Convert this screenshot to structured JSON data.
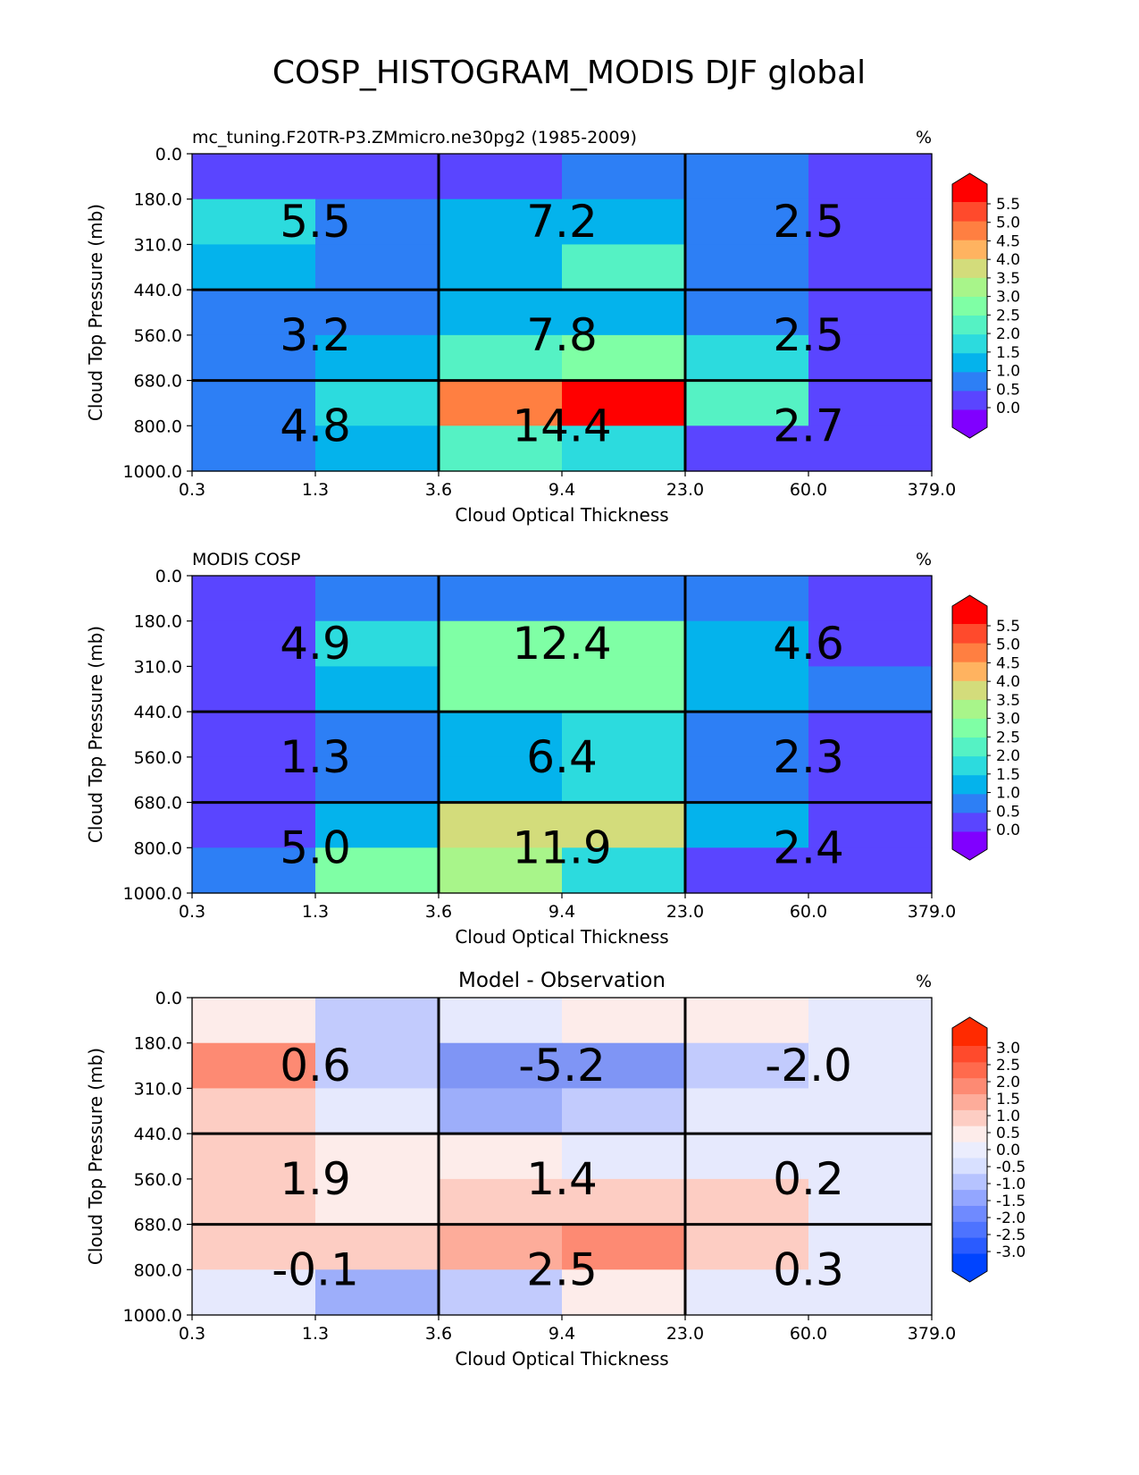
{
  "figure_title": "COSP_HISTOGRAM_MODIS DJF global",
  "chart_data": [
    {
      "type": "heatmap",
      "title_left": "mc_tuning.F20TR-P3.ZMmicro.ne30pg2 (1985-2009)",
      "title_center": "",
      "units": "%",
      "xlabel": "Cloud Optical Thickness",
      "ylabel": "Cloud Top Pressure (mb)",
      "x_ticks": [
        "0.3",
        "1.3",
        "3.6",
        "9.4",
        "23.0",
        "60.0",
        "379.0"
      ],
      "y_ticks": [
        "0.0",
        "180.0",
        "310.0",
        "440.0",
        "560.0",
        "680.0",
        "800.0",
        "1000.0"
      ],
      "colorbar": {
        "labels": [
          "5.5",
          "5.0",
          "4.5",
          "4.0",
          "3.5",
          "3.0",
          "2.5",
          "2.0",
          "1.5",
          "1.0",
          "0.5",
          "0.0"
        ],
        "extend": "both",
        "top_color": "#ff0000",
        "bottom_color": "#8000ff",
        "colors": [
          "#5a45ff",
          "#2d7ff5",
          "#04b3ec",
          "#2cdbde",
          "#55f2c4",
          "#7fffa5",
          "#a8f58a",
          "#d3dc7b",
          "#ffb360",
          "#ff7f41",
          "#ff4a2c"
        ]
      },
      "cell_colors": [
        [
          "#5a45ff",
          "#5a45ff",
          "#5a45ff",
          "#2d7ff5",
          "#2d7ff5",
          "#5a45ff"
        ],
        [
          "#2cdbde",
          "#2d7ff5",
          "#04b3ec",
          "#04b3ec",
          "#2d7ff5",
          "#5a45ff"
        ],
        [
          "#04b3ec",
          "#2d7ff5",
          "#04b3ec",
          "#55f2c4",
          "#2d7ff5",
          "#5a45ff"
        ],
        [
          "#2d7ff5",
          "#2d7ff5",
          "#04b3ec",
          "#04b3ec",
          "#2d7ff5",
          "#5a45ff"
        ],
        [
          "#2d7ff5",
          "#04b3ec",
          "#55f2c4",
          "#7fffa5",
          "#2cdbde",
          "#5a45ff"
        ],
        [
          "#2d7ff5",
          "#2cdbde",
          "#ff7f41",
          "#ff0000",
          "#55f2c4",
          "#5a45ff"
        ],
        [
          "#2d7ff5",
          "#04b3ec",
          "#55f2c4",
          "#2cdbde",
          "#5a45ff",
          "#5a45ff"
        ]
      ],
      "block_values": [
        [
          "5.5",
          "7.2",
          "2.5"
        ],
        [
          "3.2",
          "7.8",
          "2.5"
        ],
        [
          "4.8",
          "14.4",
          "2.7"
        ]
      ]
    },
    {
      "type": "heatmap",
      "title_left": "MODIS COSP",
      "title_center": "",
      "units": "%",
      "xlabel": "Cloud Optical Thickness",
      "ylabel": "Cloud Top Pressure (mb)",
      "x_ticks": [
        "0.3",
        "1.3",
        "3.6",
        "9.4",
        "23.0",
        "60.0",
        "379.0"
      ],
      "y_ticks": [
        "0.0",
        "180.0",
        "310.0",
        "440.0",
        "560.0",
        "680.0",
        "800.0",
        "1000.0"
      ],
      "colorbar": {
        "labels": [
          "5.5",
          "5.0",
          "4.5",
          "4.0",
          "3.5",
          "3.0",
          "2.5",
          "2.0",
          "1.5",
          "1.0",
          "0.5",
          "0.0"
        ],
        "extend": "both",
        "top_color": "#ff0000",
        "bottom_color": "#8000ff",
        "colors": [
          "#5a45ff",
          "#2d7ff5",
          "#04b3ec",
          "#2cdbde",
          "#55f2c4",
          "#7fffa5",
          "#a8f58a",
          "#d3dc7b",
          "#ffb360",
          "#ff7f41",
          "#ff4a2c"
        ]
      },
      "cell_colors": [
        [
          "#5a45ff",
          "#2d7ff5",
          "#2d7ff5",
          "#2d7ff5",
          "#2d7ff5",
          "#5a45ff"
        ],
        [
          "#5a45ff",
          "#2cdbde",
          "#7fffa5",
          "#7fffa5",
          "#04b3ec",
          "#5a45ff"
        ],
        [
          "#5a45ff",
          "#04b3ec",
          "#7fffa5",
          "#7fffa5",
          "#04b3ec",
          "#2d7ff5"
        ],
        [
          "#5a45ff",
          "#2d7ff5",
          "#04b3ec",
          "#2cdbde",
          "#2d7ff5",
          "#5a45ff"
        ],
        [
          "#5a45ff",
          "#2d7ff5",
          "#04b3ec",
          "#2cdbde",
          "#2d7ff5",
          "#5a45ff"
        ],
        [
          "#5a45ff",
          "#04b3ec",
          "#d3dc7b",
          "#d3dc7b",
          "#04b3ec",
          "#5a45ff"
        ],
        [
          "#2d7ff5",
          "#7fffa5",
          "#a8f58a",
          "#2cdbde",
          "#5a45ff",
          "#5a45ff"
        ]
      ],
      "block_values": [
        [
          "4.9",
          "12.4",
          "4.6"
        ],
        [
          "1.3",
          "6.4",
          "2.3"
        ],
        [
          "5.0",
          "11.9",
          "2.4"
        ]
      ]
    },
    {
      "type": "heatmap",
      "title_left": "",
      "title_center": "Model - Observation",
      "units": "%",
      "xlabel": "Cloud Optical Thickness",
      "ylabel": "Cloud Top Pressure (mb)",
      "x_ticks": [
        "0.3",
        "1.3",
        "3.6",
        "9.4",
        "23.0",
        "60.0",
        "379.0"
      ],
      "y_ticks": [
        "0.0",
        "180.0",
        "310.0",
        "440.0",
        "560.0",
        "680.0",
        "800.0",
        "1000.0"
      ],
      "colorbar": {
        "labels": [
          "3.0",
          "2.5",
          "2.0",
          "1.5",
          "1.0",
          "0.5",
          "0.0",
          "-0.5",
          "-1.0",
          "-1.5",
          "-2.0",
          "-2.5",
          "-3.0"
        ],
        "extend": "both",
        "top_color": "#ff2a00",
        "bottom_color": "#0044ff",
        "colors": [
          "#2a5bff",
          "#4d73ff",
          "#6f8aff",
          "#93a6ff",
          "#b6c3ff",
          "#d8e0ff",
          "#ebedfd",
          "#fdecea",
          "#fdcdc3",
          "#fdac9a",
          "#fd8a73",
          "#ff6a4d",
          "#ff4a2c"
        ]
      },
      "cell_colors": [
        [
          "#fdecea",
          "#c2cbfd",
          "#e6e9fd",
          "#fdecea",
          "#fdecea",
          "#e6e9fd"
        ],
        [
          "#fd8a73",
          "#c2cbfd",
          "#7f95f5",
          "#7f95f5",
          "#c2cbfd",
          "#e6e9fd"
        ],
        [
          "#fdcdc3",
          "#e6e9fd",
          "#9daefa",
          "#c2cbfd",
          "#e6e9fd",
          "#e6e9fd"
        ],
        [
          "#fdcdc3",
          "#fdecea",
          "#fdecea",
          "#e6e9fd",
          "#e6e9fd",
          "#e6e9fd"
        ],
        [
          "#fdcdc3",
          "#fdecea",
          "#fdcdc3",
          "#fdcdc3",
          "#fdcdc3",
          "#e6e9fd"
        ],
        [
          "#fdcdc3",
          "#fdcdc3",
          "#fdac9a",
          "#fd8a73",
          "#fdcdc3",
          "#e6e9fd"
        ],
        [
          "#e6e9fd",
          "#9daefa",
          "#c2cbfd",
          "#fdecea",
          "#e6e9fd",
          "#e6e9fd"
        ]
      ],
      "block_values": [
        [
          "0.6",
          "-5.2",
          "-2.0"
        ],
        [
          "1.9",
          "1.4",
          "0.2"
        ],
        [
          "-0.1",
          "2.5",
          "0.3"
        ]
      ]
    }
  ]
}
